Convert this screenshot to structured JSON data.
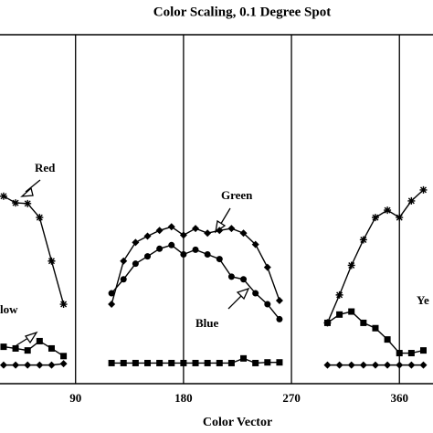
{
  "chart_data": {
    "type": "line",
    "title": "Color Scaling, 0.1 Degree Spot",
    "x_label": "Color Vector",
    "xlim": [
      27,
      388
    ],
    "ylim": [
      -5,
      100
    ],
    "xticks": [
      90,
      180,
      270,
      360
    ],
    "annotations": [
      "Red",
      "low",
      "Green",
      "Blue",
      "Ye"
    ],
    "series": [
      {
        "marker": "star",
        "x": [
          30,
          40,
          50,
          60,
          70,
          80
        ],
        "values": [
          51.4,
          49.4,
          49.2,
          45,
          31.9,
          18.9
        ]
      },
      {
        "marker": "square",
        "x": [
          30,
          40,
          50,
          60,
          70,
          80
        ],
        "values": [
          6.1,
          5.6,
          5,
          7.8,
          5.6,
          3.3
        ]
      },
      {
        "marker": "diamond",
        "x": [
          30,
          40,
          50,
          60,
          70,
          80
        ],
        "values": [
          0.6,
          0.6,
          0.6,
          0.6,
          0.6,
          1
        ]
      },
      {
        "marker": "diamond",
        "x": [
          120,
          130,
          140,
          150,
          160,
          170,
          180,
          190,
          200,
          210,
          220,
          230,
          240,
          250,
          260
        ],
        "values": [
          18.9,
          31.9,
          37.5,
          39.4,
          41.1,
          42.2,
          39.7,
          41.7,
          40.3,
          41.1,
          41.7,
          40.3,
          36.9,
          30,
          20
        ]
      },
      {
        "marker": "circle",
        "x": [
          120,
          130,
          140,
          150,
          160,
          170,
          180,
          190,
          200,
          210,
          220,
          230,
          240,
          250,
          260
        ],
        "values": [
          22.2,
          26.4,
          31.1,
          33.3,
          35.6,
          36.7,
          33.9,
          35.3,
          33.9,
          32.5,
          27.2,
          26.4,
          22.2,
          18.9,
          14.4
        ]
      },
      {
        "marker": "square",
        "x": [
          120,
          130,
          140,
          150,
          160,
          170,
          180,
          190,
          200,
          210,
          220,
          230,
          240,
          250,
          260
        ],
        "values": [
          1.2,
          1.2,
          1.2,
          1.2,
          1.2,
          1.2,
          1.2,
          1.2,
          1.2,
          1.2,
          1.2,
          2.6,
          1.2,
          1.4,
          1.4
        ]
      },
      {
        "marker": "star",
        "x": [
          300,
          310,
          320,
          330,
          340,
          350,
          360,
          370,
          380
        ],
        "values": [
          13.3,
          21.7,
          30.6,
          38.3,
          45,
          47.2,
          45,
          50,
          53.3
        ]
      },
      {
        "marker": "square",
        "x": [
          300,
          310,
          320,
          330,
          340,
          350,
          360,
          370,
          380
        ],
        "values": [
          13.3,
          15.8,
          16.7,
          13.3,
          11.7,
          8.3,
          4.2,
          4.2,
          5
        ]
      },
      {
        "marker": "diamond",
        "x": [
          300,
          310,
          320,
          330,
          340,
          350,
          360,
          370,
          380
        ],
        "values": [
          0.6,
          0.6,
          0.6,
          0.6,
          0.6,
          0.6,
          0.6,
          0.6,
          0.6
        ]
      }
    ]
  }
}
